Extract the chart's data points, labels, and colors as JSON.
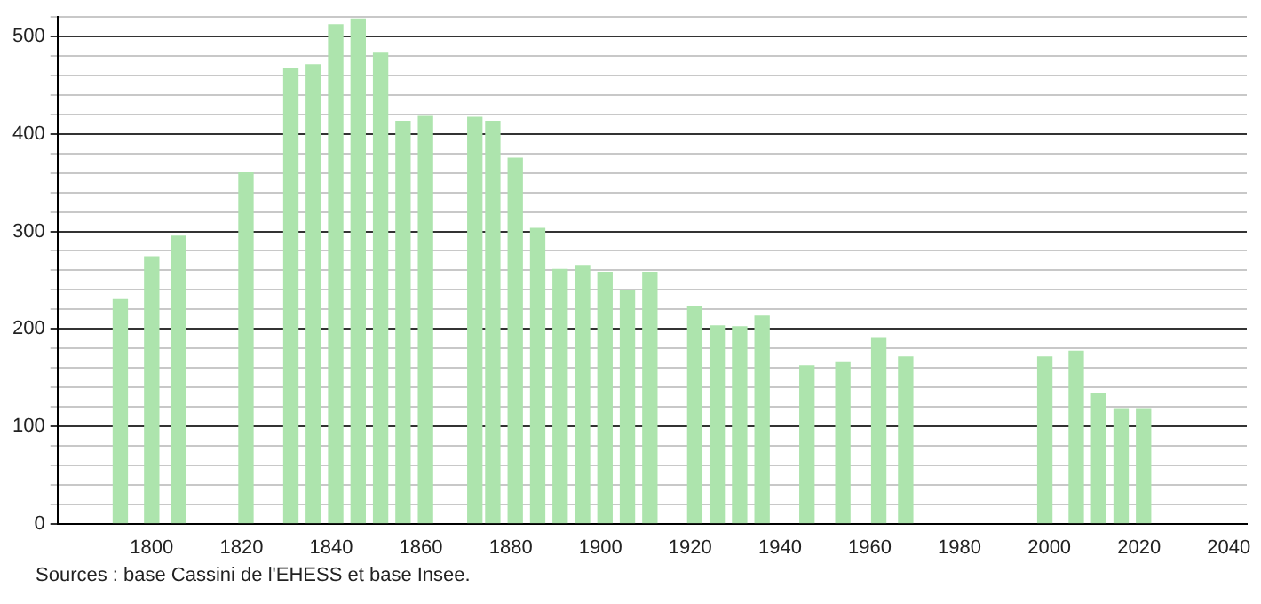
{
  "chart_data": {
    "type": "bar",
    "x": [
      1793,
      1800,
      1806,
      1821,
      1831,
      1836,
      1841,
      1846,
      1851,
      1856,
      1861,
      1872,
      1876,
      1881,
      1886,
      1891,
      1896,
      1901,
      1906,
      1911,
      1921,
      1926,
      1931,
      1936,
      1946,
      1954,
      1962,
      1968,
      1999,
      2006,
      2011,
      2016,
      2021
    ],
    "values": [
      230,
      274,
      295,
      360,
      467,
      471,
      512,
      518,
      483,
      413,
      418,
      417,
      413,
      375,
      303,
      261,
      265,
      258,
      239,
      258,
      223,
      203,
      202,
      213,
      162,
      166,
      191,
      171,
      171,
      177,
      133,
      118,
      118
    ],
    "color": "#ade4ad",
    "xlim": [
      1779,
      2044
    ],
    "xticks": [
      1800,
      1820,
      1840,
      1860,
      1880,
      1900,
      1920,
      1940,
      1960,
      1980,
      2000,
      2020,
      2040
    ],
    "ylim": [
      0,
      520
    ],
    "yticks": [
      0,
      {
        "value": 20,
        "label": null
      },
      {
        "value": 40,
        "label": null
      },
      {
        "value": 60,
        "label": null
      },
      {
        "value": 80,
        "label": null
      },
      100,
      {
        "value": 120,
        "label": null
      },
      {
        "value": 140,
        "label": null
      },
      {
        "value": 160,
        "label": null
      },
      {
        "value": 180,
        "label": null
      },
      200,
      {
        "value": 220,
        "label": null
      },
      {
        "value": 240,
        "label": null
      },
      {
        "value": 260,
        "label": null
      },
      {
        "value": 280,
        "label": null
      },
      300,
      {
        "value": 320,
        "label": null
      },
      {
        "value": 340,
        "label": null
      },
      {
        "value": 360,
        "label": null
      },
      {
        "value": 380,
        "label": null
      },
      400,
      {
        "value": 420,
        "label": null
      },
      {
        "value": 440,
        "label": null
      },
      {
        "value": 460,
        "label": null
      },
      {
        "value": 480,
        "label": null
      },
      500,
      {
        "value": 520,
        "label": null
      }
    ],
    "grid": "y",
    "annotations": [
      "Sources : base Cassini de l'EHESS et base Insee."
    ]
  }
}
